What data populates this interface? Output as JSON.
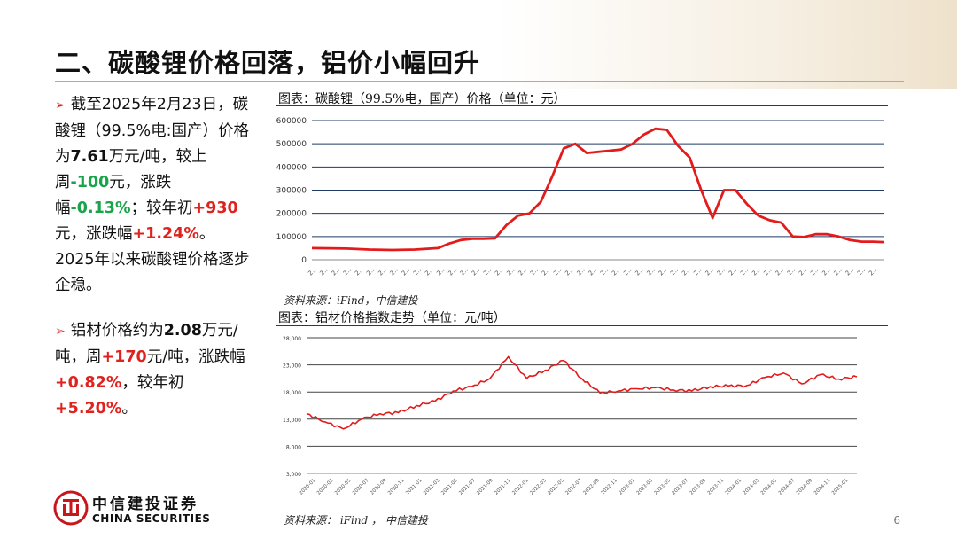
{
  "slide": {
    "title": "二、碳酸锂价格回落，铝价小幅回升",
    "page_number": "6"
  },
  "bullets": {
    "p1": {
      "t1": "截至2025年2月23日，碳酸锂（99.5%电:国产）价格为",
      "price": "7.61",
      "t2": "万元/吨，较上周",
      "wow": "-100",
      "t3": "元，涨跌幅",
      "wow_pct": "-0.13%",
      "t4": "；较年初",
      "ytd": "+930",
      "t5": "元，涨跌幅",
      "ytd_pct": "+1.24%",
      "t6": "。2025年以来碳酸锂价格逐步企稳。"
    },
    "p2": {
      "t1": "铝材价格约为",
      "price": "2.08",
      "t2": "万元/吨，周",
      "wow": "+170",
      "t3": "元/吨，涨跌幅",
      "wow_pct": "+0.82%",
      "t4": "，较年初",
      "ytd_pct": "+5.20%",
      "t5": "。"
    }
  },
  "logo": {
    "cn": "中信建投证券",
    "en": "CHINA SECURITIES"
  },
  "colors": {
    "series": "#e31b1b",
    "axis_rule": "#1f3a63",
    "up": "#e0221e",
    "down": "#1aa34a"
  },
  "chart_data": [
    {
      "type": "line",
      "title": "图表：碳酸锂（99.5%电，国产）价格（单位：元）",
      "source": "资料来源：iFind，中信建投",
      "y_ticks": [
        "0",
        "100000",
        "200000",
        "300000",
        "400000",
        "500000",
        "600000"
      ],
      "ylim": [
        0,
        600000
      ],
      "x_tick_labels": [
        "2…",
        "2…",
        "2…",
        "2…",
        "2…",
        "2…",
        "2…",
        "2…",
        "2…",
        "2…",
        "2…",
        "2…",
        "2…",
        "2…",
        "2…",
        "2…",
        "2…",
        "2…",
        "2…",
        "2…",
        "2…",
        "2…",
        "2…",
        "2…",
        "2…",
        "2…",
        "2…",
        "2…",
        "2…",
        "2…",
        "2…",
        "2…",
        "2…",
        "2…",
        "2…",
        "2…",
        "2…",
        "2…",
        "2…",
        "2…",
        "2…",
        "2…",
        "2…",
        "2…",
        "2…",
        "2…",
        "2…",
        "2…",
        "2…"
      ],
      "grid": true,
      "x": [
        0,
        6,
        10,
        14,
        18,
        22,
        24,
        26,
        28,
        30,
        32,
        34,
        36,
        38,
        40,
        42,
        44,
        46,
        48,
        50,
        52,
        54,
        56,
        58,
        60,
        62,
        64,
        66,
        68,
        70,
        72,
        74,
        76,
        78,
        80,
        82,
        84,
        86,
        88,
        90,
        92,
        94,
        96,
        98,
        100
      ],
      "series": [
        {
          "values": [
            50000,
            48000,
            44000,
            42000,
            44000,
            50000,
            70000,
            85000,
            90000,
            90000,
            92000,
            150000,
            190000,
            200000,
            250000,
            360000,
            480000,
            500000,
            460000,
            465000,
            470000,
            475000,
            500000,
            540000,
            565000,
            560000,
            490000,
            440000,
            300000,
            180000,
            300000,
            300000,
            240000,
            190000,
            170000,
            160000,
            100000,
            98000,
            110000,
            110000,
            100000,
            85000,
            78000,
            78000,
            76000
          ]
        }
      ]
    },
    {
      "type": "line",
      "title": "图表：铝材价格指数走势（单位：元/吨）",
      "source": "资料来源： iFind ， 中信建投",
      "y_ticks": [
        "3,000",
        "8,000",
        "13,000",
        "18,000",
        "23,000",
        "28,000"
      ],
      "ylim": [
        3000,
        28000
      ],
      "x_tick_labels": [
        "2020-01",
        "2020-03",
        "2020-05",
        "2020-07",
        "2020-09",
        "2020-11",
        "2021-01",
        "2021-03",
        "2021-05",
        "2021-07",
        "2021-09",
        "2021-11",
        "2022-01",
        "2022-03",
        "2022-05",
        "2022-07",
        "2022-09",
        "2022-11",
        "2023-01",
        "2023-03",
        "2023-05",
        "2023-07",
        "2023-09",
        "2023-11",
        "2024-01",
        "2024-03",
        "2024-05",
        "2024-07",
        "2024-09",
        "2024-11",
        "2025-01"
      ],
      "grid": true,
      "x": [
        0,
        1,
        2,
        3,
        4,
        5,
        6,
        7,
        8,
        9,
        10,
        11,
        12,
        13,
        14,
        15,
        16,
        17,
        18,
        19,
        20,
        21,
        22,
        23,
        24,
        25,
        26,
        27,
        28,
        29,
        30
      ],
      "series": [
        {
          "values": [
            14000,
            12500,
            11200,
            13000,
            14000,
            14200,
            15500,
            16300,
            18200,
            19000,
            20500,
            24500,
            20500,
            22000,
            23800,
            20500,
            17800,
            18200,
            18600,
            18800,
            18400,
            18200,
            19000,
            19100,
            19200,
            20700,
            21500,
            19500,
            21200,
            20400,
            20800
          ]
        }
      ]
    }
  ]
}
